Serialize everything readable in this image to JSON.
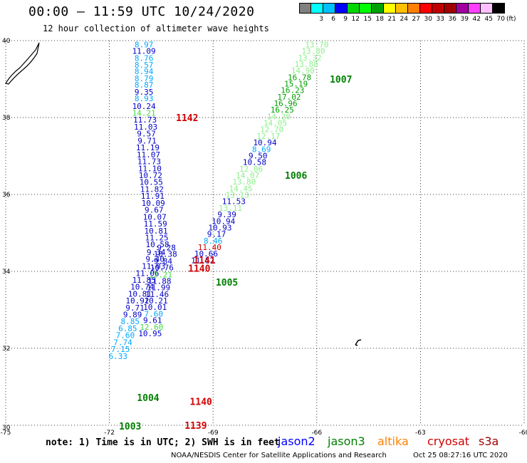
{
  "header": {
    "title": "00:00 – 11:59 UTC 10/24/2020",
    "subtitle": "12 hour collection of altimeter wave heights"
  },
  "legend": {
    "colors": [
      "#808080",
      "#00ffff",
      "#00c0ff",
      "#0000ff",
      "#00d800",
      "#00ff00",
      "#00a000",
      "#ffff00",
      "#ffc000",
      "#ff8000",
      "#ff0000",
      "#c00000",
      "#a00000",
      "#a000a0",
      "#ff40ff",
      "#ffc0ff",
      "#000000"
    ],
    "ticks": [
      "3",
      "6",
      "9",
      "12",
      "15",
      "18",
      "21",
      "24",
      "27",
      "30",
      "33",
      "36",
      "39",
      "42",
      "45",
      "70"
    ],
    "unit": "(ft)"
  },
  "footer": {
    "note": "note: 1) Time is in UTC; 2) SWH is in feet",
    "missions": [
      {
        "name": "jason2",
        "color": "#0000ff"
      },
      {
        "name": "jason3",
        "color": "#008000"
      },
      {
        "name": "altika",
        "color": "#ff8000"
      },
      {
        "name": "cryosat",
        "color": "#d00000"
      },
      {
        "name": "s3a",
        "color": "#a00000"
      }
    ],
    "credit": "NOAA/NESDIS Center for Satellite Applications and Research",
    "stamp": "Oct 25 08:27:16 UTC 2020"
  },
  "chart_data": {
    "type": "scatter",
    "title": "00:00 – 11:59 UTC 10/24/2020",
    "subtitle": "12 hour collection of altimeter wave heights",
    "xlim": [
      -75,
      -60
    ],
    "ylim": [
      30,
      40
    ],
    "x_ticks": [
      -75,
      -72,
      -69,
      -66,
      -63,
      -60
    ],
    "x_tick_labels": [
      "-75",
      "-72",
      "-69",
      "-66",
      "-63",
      "-60"
    ],
    "y_ticks": [
      30,
      32,
      34,
      36,
      38,
      40
    ],
    "y_tick_labels": [
      "30",
      "32",
      "34",
      "36",
      "38",
      "40"
    ],
    "grid": true,
    "wave_heights": [
      {
        "lon": -71.0,
        "lat": 39.9,
        "label": "8.97",
        "color": "#00a8ff"
      },
      {
        "lon": -71.0,
        "lat": 39.73,
        "label": "11.09",
        "color": "#0000c8"
      },
      {
        "lon": -71.0,
        "lat": 39.55,
        "label": "8.76",
        "color": "#00a8ff"
      },
      {
        "lon": -71.0,
        "lat": 39.37,
        "label": "8.57",
        "color": "#00a8ff"
      },
      {
        "lon": -71.0,
        "lat": 39.2,
        "label": "8.94",
        "color": "#00a8ff"
      },
      {
        "lon": -71.0,
        "lat": 39.02,
        "label": "8.79",
        "color": "#00a8ff"
      },
      {
        "lon": -71.0,
        "lat": 38.85,
        "label": "8.87",
        "color": "#00a8ff"
      },
      {
        "lon": -71.0,
        "lat": 38.67,
        "label": "9.35",
        "color": "#0000c8"
      },
      {
        "lon": -71.0,
        "lat": 38.5,
        "label": "8.93",
        "color": "#00a8ff"
      },
      {
        "lon": -71.0,
        "lat": 38.3,
        "label": "10.24",
        "color": "#0000c8"
      },
      {
        "lon": -71.0,
        "lat": 38.12,
        "label": "14.21",
        "color": "#3cdc3c"
      },
      {
        "lon": -70.97,
        "lat": 37.94,
        "label": "11.73",
        "color": "#0000c8"
      },
      {
        "lon": -70.95,
        "lat": 37.76,
        "label": "11.03",
        "color": "#0000c8"
      },
      {
        "lon": -70.93,
        "lat": 37.58,
        "label": "9.57",
        "color": "#0000c8"
      },
      {
        "lon": -70.91,
        "lat": 37.4,
        "label": "9.71",
        "color": "#0000c8"
      },
      {
        "lon": -70.89,
        "lat": 37.22,
        "label": "11.19",
        "color": "#0000c8"
      },
      {
        "lon": -70.87,
        "lat": 37.04,
        "label": "11.07",
        "color": "#0000c8"
      },
      {
        "lon": -70.85,
        "lat": 36.86,
        "label": "11.73",
        "color": "#0000c8"
      },
      {
        "lon": -70.83,
        "lat": 36.68,
        "label": "11.10",
        "color": "#0000c8"
      },
      {
        "lon": -70.81,
        "lat": 36.5,
        "label": "10.72",
        "color": "#0000c8"
      },
      {
        "lon": -70.79,
        "lat": 36.32,
        "label": "10.55",
        "color": "#0000c8"
      },
      {
        "lon": -70.77,
        "lat": 36.14,
        "label": "11.82",
        "color": "#0000c8"
      },
      {
        "lon": -70.75,
        "lat": 35.96,
        "label": "11.91",
        "color": "#0000c8"
      },
      {
        "lon": -70.73,
        "lat": 35.78,
        "label": "10.09",
        "color": "#0000c8"
      },
      {
        "lon": -70.71,
        "lat": 35.6,
        "label": "9.67",
        "color": "#0000c8"
      },
      {
        "lon": -70.69,
        "lat": 35.42,
        "label": "10.07",
        "color": "#0000c8"
      },
      {
        "lon": -70.67,
        "lat": 35.24,
        "label": "11.59",
        "color": "#0000c8"
      },
      {
        "lon": -70.65,
        "lat": 35.06,
        "label": "10.81",
        "color": "#0000c8"
      },
      {
        "lon": -70.63,
        "lat": 34.88,
        "label": "11.25",
        "color": "#0000c8"
      },
      {
        "lon": -70.61,
        "lat": 34.7,
        "label": "10.58",
        "color": "#0000c8"
      },
      {
        "lon": -70.65,
        "lat": 34.5,
        "label": "9.34",
        "color": "#0000c8"
      },
      {
        "lon": -70.68,
        "lat": 34.32,
        "label": "9.40",
        "color": "#0000c8"
      },
      {
        "lon": -70.72,
        "lat": 34.14,
        "label": "11.03",
        "color": "#0000c8"
      },
      {
        "lon": -70.9,
        "lat": 33.95,
        "label": "11.06",
        "color": "#0000c8"
      },
      {
        "lon": -71.0,
        "lat": 33.78,
        "label": "11.85",
        "color": "#0000c8"
      },
      {
        "lon": -71.05,
        "lat": 33.6,
        "label": "10.74",
        "color": "#0000c8"
      },
      {
        "lon": -71.12,
        "lat": 33.42,
        "label": "10.81",
        "color": "#0000c8"
      },
      {
        "lon": -71.19,
        "lat": 33.24,
        "label": "10.92",
        "color": "#0000c8"
      },
      {
        "lon": -71.26,
        "lat": 33.06,
        "label": "9.71",
        "color": "#0000c8"
      },
      {
        "lon": -71.33,
        "lat": 32.88,
        "label": "9.89",
        "color": "#0000c8"
      },
      {
        "lon": -71.4,
        "lat": 32.7,
        "label": "8.85",
        "color": "#00a8ff"
      },
      {
        "lon": -71.47,
        "lat": 32.52,
        "label": "6.85",
        "color": "#00a8ff"
      },
      {
        "lon": -71.54,
        "lat": 32.34,
        "label": "7.60",
        "color": "#00a8ff"
      },
      {
        "lon": -71.61,
        "lat": 32.16,
        "label": "7.74",
        "color": "#00a8ff"
      },
      {
        "lon": -71.68,
        "lat": 31.98,
        "label": "7.15",
        "color": "#00a8ff"
      },
      {
        "lon": -71.75,
        "lat": 31.8,
        "label": "6.33",
        "color": "#00a8ff"
      },
      {
        "lon": -70.35,
        "lat": 34.62,
        "label": "9.28",
        "color": "#0000c8"
      },
      {
        "lon": -70.38,
        "lat": 34.45,
        "label": "10.38",
        "color": "#0000c8"
      },
      {
        "lon": -70.45,
        "lat": 34.27,
        "label": "9.84",
        "color": "#0000c8"
      },
      {
        "lon": -70.48,
        "lat": 34.1,
        "label": "10.76",
        "color": "#0000c8"
      },
      {
        "lon": -70.52,
        "lat": 33.92,
        "label": "12.21",
        "color": "#3cdc3c"
      },
      {
        "lon": -70.55,
        "lat": 33.75,
        "label": "11.88",
        "color": "#0000c8"
      },
      {
        "lon": -70.58,
        "lat": 33.58,
        "label": "11.99",
        "color": "#0000c8"
      },
      {
        "lon": -70.62,
        "lat": 33.41,
        "label": "11.46",
        "color": "#0000c8"
      },
      {
        "lon": -70.65,
        "lat": 33.24,
        "label": "10.21",
        "color": "#0000c8"
      },
      {
        "lon": -70.68,
        "lat": 33.07,
        "label": "10.01",
        "color": "#0000c8"
      },
      {
        "lon": -70.72,
        "lat": 32.9,
        "label": "7.60",
        "color": "#00a8ff"
      },
      {
        "lon": -70.75,
        "lat": 32.73,
        "label": "9.61",
        "color": "#0000c8"
      },
      {
        "lon": -70.78,
        "lat": 32.56,
        "label": "12.60",
        "color": "#3cdc3c"
      },
      {
        "lon": -70.82,
        "lat": 32.39,
        "label": "10.95",
        "color": "#0000c8"
      },
      {
        "lon": -66.0,
        "lat": 39.9,
        "label": "13.70",
        "color": "#8cf08c"
      },
      {
        "lon": -66.1,
        "lat": 39.73,
        "label": "13.80",
        "color": "#8cf08c"
      },
      {
        "lon": -66.2,
        "lat": 39.56,
        "label": "13.32",
        "color": "#8cf08c"
      },
      {
        "lon": -66.3,
        "lat": 39.39,
        "label": "13.88",
        "color": "#8cf08c"
      },
      {
        "lon": -66.4,
        "lat": 39.22,
        "label": "14.90",
        "color": "#8cf08c"
      },
      {
        "lon": -66.5,
        "lat": 39.05,
        "label": "16.78",
        "color": "#00a000"
      },
      {
        "lon": -66.6,
        "lat": 38.88,
        "label": "15.19",
        "color": "#00a000"
      },
      {
        "lon": -66.7,
        "lat": 38.71,
        "label": "16.23",
        "color": "#00a000"
      },
      {
        "lon": -66.8,
        "lat": 38.54,
        "label": "17.02",
        "color": "#00a000"
      },
      {
        "lon": -66.9,
        "lat": 38.37,
        "label": "16.96",
        "color": "#00a000"
      },
      {
        "lon": -67.0,
        "lat": 38.2,
        "label": "16.25",
        "color": "#00a000"
      },
      {
        "lon": -67.1,
        "lat": 38.03,
        "label": "14.20",
        "color": "#8cf08c"
      },
      {
        "lon": -67.2,
        "lat": 37.86,
        "label": "14.05",
        "color": "#8cf08c"
      },
      {
        "lon": -67.3,
        "lat": 37.69,
        "label": "12.70",
        "color": "#8cf08c"
      },
      {
        "lon": -67.4,
        "lat": 37.52,
        "label": "12.17",
        "color": "#8cf08c"
      },
      {
        "lon": -67.5,
        "lat": 37.35,
        "label": "10.94",
        "color": "#0000c8"
      },
      {
        "lon": -67.6,
        "lat": 37.18,
        "label": "8.69",
        "color": "#00a8ff"
      },
      {
        "lon": -67.7,
        "lat": 37.01,
        "label": "9.50",
        "color": "#0000c8"
      },
      {
        "lon": -67.8,
        "lat": 36.84,
        "label": "10.58",
        "color": "#0000c8"
      },
      {
        "lon": -67.9,
        "lat": 36.67,
        "label": "12.06",
        "color": "#8cf08c"
      },
      {
        "lon": -68.0,
        "lat": 36.5,
        "label": "14.07",
        "color": "#8cf08c"
      },
      {
        "lon": -68.1,
        "lat": 36.33,
        "label": "13.80",
        "color": "#8cf08c"
      },
      {
        "lon": -68.2,
        "lat": 36.16,
        "label": "14.45",
        "color": "#8cf08c"
      },
      {
        "lon": -68.3,
        "lat": 35.99,
        "label": "13.13",
        "color": "#8cf08c"
      },
      {
        "lon": -68.4,
        "lat": 35.82,
        "label": "11.53",
        "color": "#0000c8"
      },
      {
        "lon": -68.5,
        "lat": 35.65,
        "label": "13.11",
        "color": "#8cf08c"
      },
      {
        "lon": -68.6,
        "lat": 35.48,
        "label": "9.39",
        "color": "#0000c8"
      },
      {
        "lon": -68.7,
        "lat": 35.31,
        "label": "10.94",
        "color": "#0000c8"
      },
      {
        "lon": -68.8,
        "lat": 35.14,
        "label": "10.93",
        "color": "#0000c8"
      },
      {
        "lon": -68.9,
        "lat": 34.97,
        "label": "9.17",
        "color": "#0000c8"
      },
      {
        "lon": -69.0,
        "lat": 34.8,
        "label": "8.46",
        "color": "#00a8ff"
      },
      {
        "lon": -69.1,
        "lat": 34.63,
        "label": "11.40",
        "color": "#d00000"
      },
      {
        "lon": -69.2,
        "lat": 34.46,
        "label": "10.66",
        "color": "#0000c8"
      },
      {
        "lon": -69.3,
        "lat": 34.29,
        "label": "11.52",
        "color": "#0000c8"
      }
    ],
    "annotations": [
      {
        "lon": -69.75,
        "lat": 38.0,
        "text": "1142",
        "color": "#d00000"
      },
      {
        "lon": -65.3,
        "lat": 39.0,
        "text": "1007",
        "color": "#008000"
      },
      {
        "lon": -66.6,
        "lat": 36.5,
        "text": "1006",
        "color": "#008000"
      },
      {
        "lon": -69.25,
        "lat": 34.3,
        "text": "1141",
        "color": "#d00000"
      },
      {
        "lon": -69.4,
        "lat": 34.08,
        "text": "1140",
        "color": "#d00000"
      },
      {
        "lon": -68.6,
        "lat": 33.72,
        "text": "1005",
        "color": "#008000"
      },
      {
        "lon": -69.35,
        "lat": 30.62,
        "text": "1140",
        "color": "#d00000"
      },
      {
        "lon": -70.88,
        "lat": 30.72,
        "text": "1004",
        "color": "#008000"
      },
      {
        "lon": -71.4,
        "lat": 29.98,
        "text": "1003",
        "color": "#008000"
      },
      {
        "lon": -69.5,
        "lat": 30.0,
        "text": "1139",
        "color": "#d00000"
      }
    ]
  }
}
